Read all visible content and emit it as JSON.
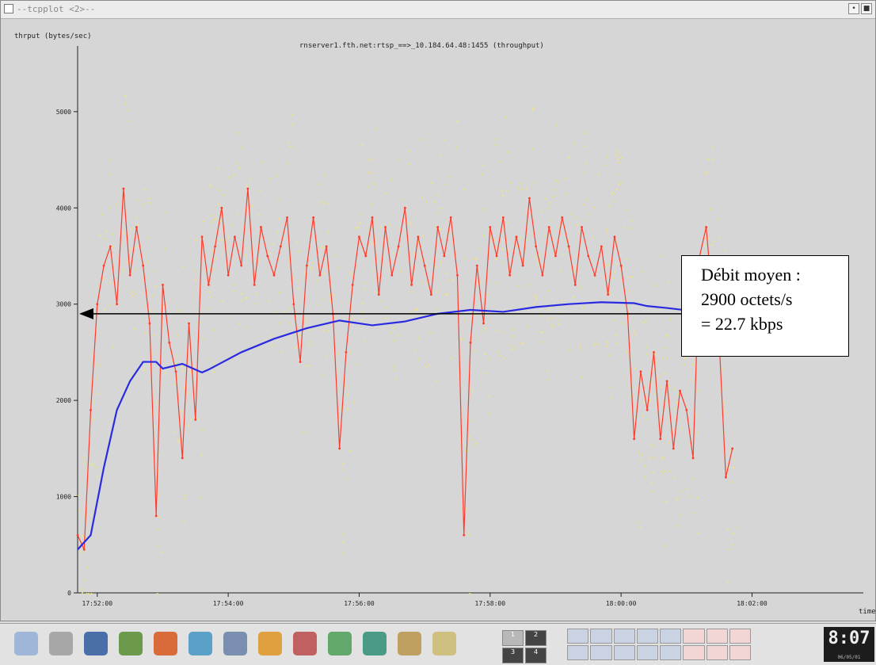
{
  "window": {
    "title": "--tcpplot <2>--",
    "buttons": [
      "•",
      "■"
    ]
  },
  "chart_data": {
    "type": "line",
    "title": "rnserver1.fth.net:rtsp_==>_10.184.64.48:1455 (throughput)",
    "xlabel": "time",
    "ylabel": "thrput (bytes/sec)",
    "y_ticks": [
      0,
      1000,
      2000,
      3000,
      4000,
      5000
    ],
    "ylim": [
      0,
      5600
    ],
    "x_ticks": [
      "17:52:00",
      "17:54:00",
      "17:56:00",
      "17:58:00",
      "18:00:00",
      "18:02:00"
    ],
    "xlim": [
      0,
      12
    ],
    "grid": false,
    "series": [
      {
        "color": "#ff3a2a",
        "x": [
          0.0,
          0.1,
          0.2,
          0.3,
          0.4,
          0.5,
          0.6,
          0.7,
          0.8,
          0.9,
          1.0,
          1.1,
          1.2,
          1.3,
          1.4,
          1.5,
          1.6,
          1.7,
          1.8,
          1.9,
          2.0,
          2.1,
          2.2,
          2.3,
          2.4,
          2.5,
          2.6,
          2.7,
          2.8,
          2.9,
          3.0,
          3.1,
          3.2,
          3.3,
          3.4,
          3.5,
          3.6,
          3.7,
          3.8,
          3.9,
          4.0,
          4.1,
          4.2,
          4.3,
          4.4,
          4.5,
          4.6,
          4.7,
          4.8,
          4.9,
          5.0,
          5.1,
          5.2,
          5.3,
          5.4,
          5.5,
          5.6,
          5.7,
          5.8,
          5.9,
          6.0,
          6.1,
          6.2,
          6.3,
          6.4,
          6.5,
          6.6,
          6.7,
          6.8,
          6.9,
          7.0,
          7.1,
          7.2,
          7.3,
          7.4,
          7.5,
          7.6,
          7.7,
          7.8,
          7.9,
          8.0,
          8.1,
          8.2,
          8.3,
          8.4,
          8.5,
          8.6,
          8.7,
          8.8,
          8.9,
          9.0,
          9.1,
          9.2,
          9.3,
          9.4,
          9.5,
          9.6,
          9.7,
          9.8,
          9.9,
          10.0
        ],
        "values": [
          600,
          450,
          1900,
          3000,
          3400,
          3600,
          3000,
          4200,
          3300,
          3800,
          3400,
          2800,
          800,
          3200,
          2600,
          2300,
          1400,
          2800,
          1800,
          3700,
          3200,
          3600,
          4000,
          3300,
          3700,
          3400,
          4200,
          3200,
          3800,
          3500,
          3300,
          3600,
          3900,
          3000,
          2400,
          3400,
          3900,
          3300,
          3600,
          2900,
          1500,
          2500,
          3200,
          3700,
          3500,
          3900,
          3100,
          3800,
          3300,
          3600,
          4000,
          3200,
          3700,
          3400,
          3100,
          3800,
          3500,
          3900,
          3300,
          600,
          2600,
          3400,
          2800,
          3800,
          3500,
          3900,
          3300,
          3700,
          3400,
          4100,
          3600,
          3300,
          3800,
          3500,
          3900,
          3600,
          3200,
          3800,
          3500,
          3300,
          3600,
          3100,
          3700,
          3400,
          2900,
          1600,
          2300,
          1900,
          2500,
          1600,
          2200,
          1500,
          2100,
          1900,
          1400,
          3500,
          3800,
          3000,
          2600,
          1200,
          1500
        ]
      },
      {
        "color": "#2a2ae0",
        "x": [
          0.0,
          0.2,
          0.4,
          0.6,
          0.8,
          1.0,
          1.2,
          1.3,
          1.6,
          1.9,
          2.0,
          2.5,
          3.0,
          3.5,
          4.0,
          4.5,
          5.0,
          5.5,
          6.0,
          6.5,
          7.0,
          7.5,
          8.0,
          8.5,
          8.7,
          9.0,
          9.5,
          10.0,
          10.3
        ],
        "values": [
          450,
          600,
          1300,
          1900,
          2200,
          2400,
          2400,
          2330,
          2380,
          2290,
          2320,
          2500,
          2640,
          2750,
          2830,
          2780,
          2820,
          2900,
          2940,
          2920,
          2970,
          3000,
          3020,
          3010,
          2980,
          2960,
          2920,
          2900,
          2900
        ]
      }
    ],
    "annotation": {
      "lines": [
        "Débit moyen :",
        "2900 octets/s",
        "= 22.7 kbps"
      ],
      "arrow_value": 2900
    }
  },
  "taskbar": {
    "icons": [
      "kde-menu-icon",
      "home-folder-icon",
      "terminal-icon",
      "system-monitor-icon",
      "help-lifebuoy-icon",
      "network-icon",
      "search-icon",
      "editor-icon",
      "paint-icon",
      "graphics-icon",
      "globe-icon",
      "config-icon",
      "pencil-icon"
    ],
    "pager": [
      "1",
      "2",
      "3",
      "4"
    ],
    "clock": {
      "time": "8:07",
      "date": "06/05/01"
    }
  }
}
